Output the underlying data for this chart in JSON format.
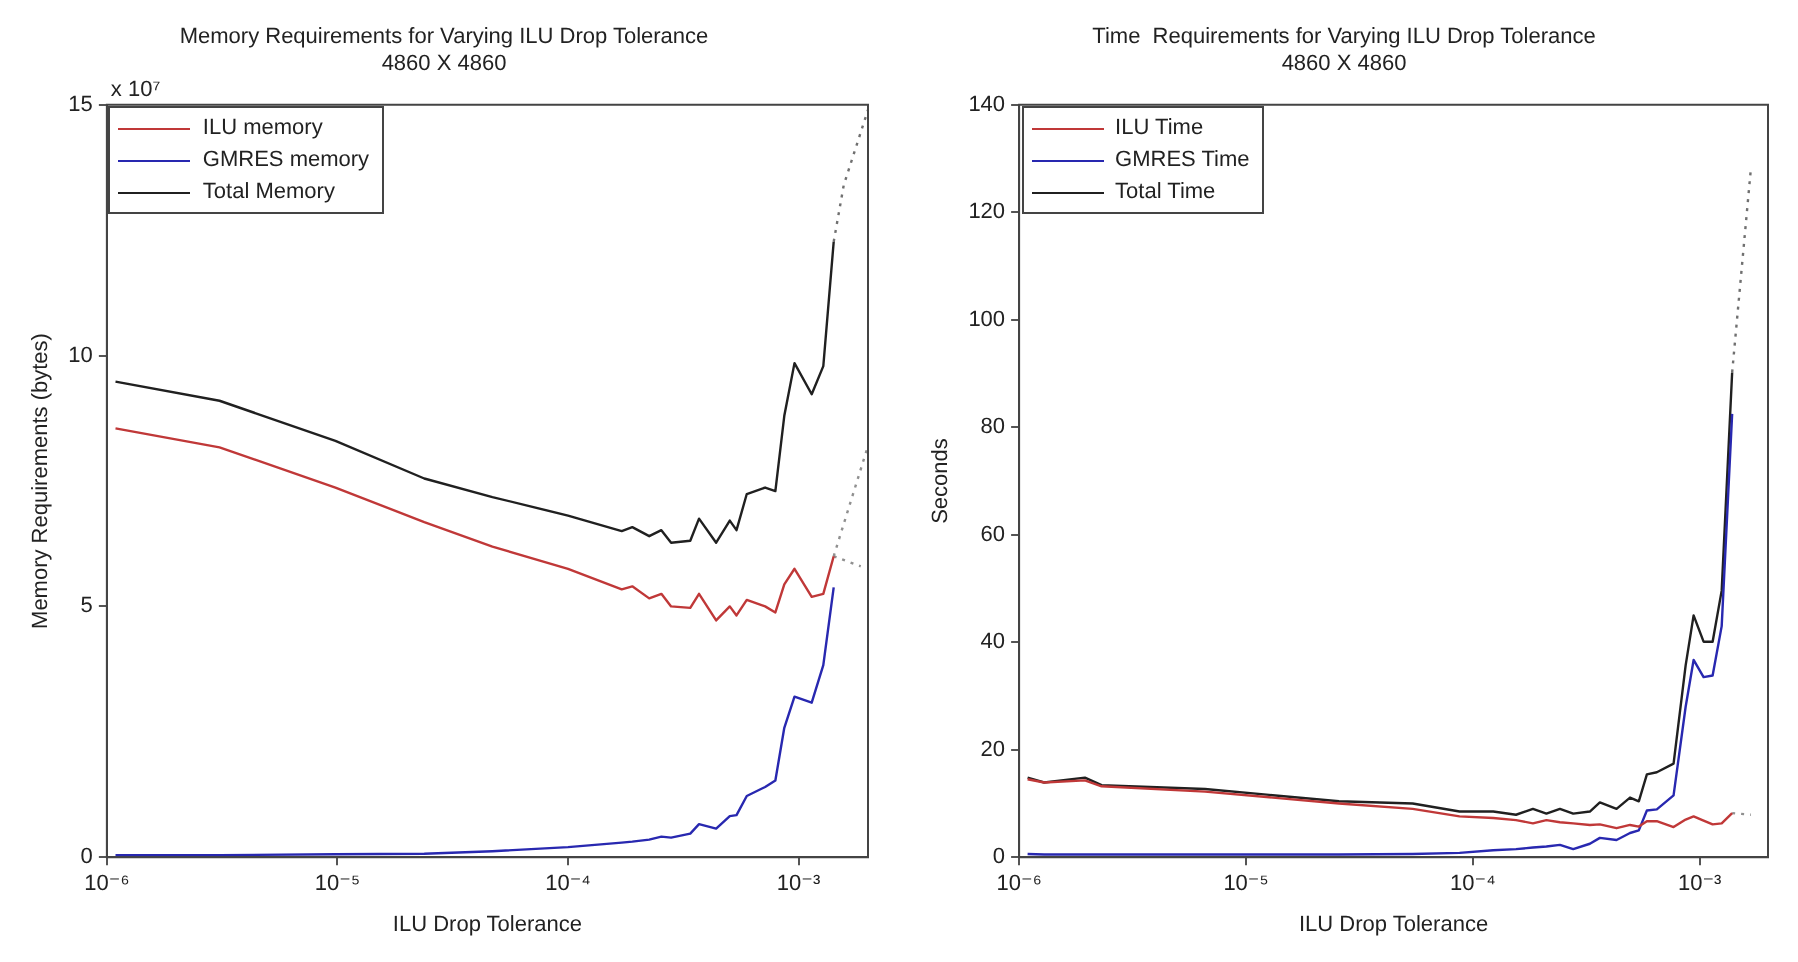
{
  "chart_data": [
    {
      "type": "line",
      "title": "Memory Requirements for Varying ILU Drop Tolerance",
      "subtitle": "4860 X 4860",
      "xlabel": "ILU Drop Tolerance",
      "ylabel": "Memory Requirements (bytes)",
      "annotations": [
        "x 10⁷"
      ],
      "x": [
        1.09e-06,
        3.08e-06,
        9.8e-06,
        2.38e-05,
        4.7e-05,
        0.0001,
        0.000171,
        0.00019,
        0.000225,
        0.000254,
        0.00028,
        0.000339,
        0.00037,
        0.000439,
        0.000503,
        0.000538,
        0.000596,
        0.000716,
        0.000793,
        0.000867,
        0.00096,
        0.00114,
        0.00128,
        0.00142
      ],
      "series": [
        {
          "name": "ILU memory",
          "color": "#c03838",
          "values": [
            8.55,
            8.17,
            7.37,
            6.68,
            6.19,
            5.75,
            5.34,
            5.4,
            5.16,
            5.25,
            5.0,
            4.97,
            5.25,
            4.72,
            5.0,
            4.82,
            5.13,
            5.0,
            4.88,
            5.44,
            5.75,
            5.19,
            5.25,
            6.0
          ]
        },
        {
          "name": "GMRES memory",
          "color": "#2828b0",
          "values": [
            0.04,
            0.04,
            0.06,
            0.07,
            0.12,
            0.2,
            0.29,
            0.31,
            0.35,
            0.41,
            0.39,
            0.47,
            0.66,
            0.57,
            0.82,
            0.84,
            1.22,
            1.4,
            1.53,
            2.58,
            3.2,
            3.08,
            3.83,
            5.38
          ]
        },
        {
          "name": "Total Memory",
          "color": "#202020",
          "values": [
            9.48,
            9.1,
            8.3,
            7.55,
            7.18,
            6.81,
            6.5,
            6.58,
            6.4,
            6.52,
            6.27,
            6.31,
            6.75,
            6.27,
            6.71,
            6.52,
            7.24,
            7.37,
            7.3,
            8.8,
            9.85,
            9.23,
            9.79,
            12.27
          ]
        },
        {
          "color": "#707070",
          "line_style": "dotted",
          "x": [
            0.00142,
            0.00157,
            0.002
          ],
          "values": [
            12.27,
            13.4,
            14.9
          ]
        },
        {
          "color": "#909090",
          "line_style": "dotted",
          "x": [
            0.00142,
            0.002
          ],
          "values": [
            6.0,
            8.2
          ]
        },
        {
          "color": "#909090",
          "line_style": "dotted",
          "x": [
            0.00142,
            0.00186
          ],
          "values": [
            6.0,
            5.8
          ]
        }
      ],
      "log": "x",
      "xlim": [
        1e-06,
        0.002
      ],
      "xticks": [
        {
          "value": 1e-06,
          "label": "10⁻⁶"
        },
        {
          "value": 1e-05,
          "label": "10⁻⁵"
        },
        {
          "value": 0.0001,
          "label": "10⁻⁴"
        },
        {
          "value": 0.001,
          "label": "10⁻³"
        }
      ],
      "ylim": [
        0,
        15
      ],
      "yticks": [
        0,
        5,
        10,
        15
      ],
      "grid": false,
      "legend": "top left"
    },
    {
      "type": "line",
      "title": "Time  Requirements for Varying ILU Drop Tolerance",
      "subtitle": "4860 X 4860",
      "xlabel": "ILU Drop Tolerance",
      "ylabel": "Seconds",
      "x": [
        1.09e-06,
        1.29e-06,
        1.95e-06,
        2.31e-06,
        6.6e-06,
        2.57e-05,
        5.43e-05,
        8.74e-05,
        0.000123,
        0.000155,
        0.000184,
        0.000211,
        0.000242,
        0.000277,
        0.000328,
        0.000363,
        0.00043,
        0.000493,
        0.000539,
        0.000585,
        0.000647,
        0.000767,
        0.000867,
        0.00094,
        0.00104,
        0.00114,
        0.00125,
        0.00139
      ],
      "series": [
        {
          "name": "ILU Time",
          "color": "#c03838",
          "values": [
            14.5,
            13.9,
            14.3,
            13.2,
            12.2,
            10.0,
            9.0,
            7.6,
            7.3,
            6.9,
            6.3,
            6.9,
            6.5,
            6.3,
            6.0,
            6.1,
            5.4,
            6.0,
            5.7,
            6.7,
            6.7,
            5.6,
            7.0,
            7.6,
            6.8,
            6.1,
            6.3,
            8.2
          ]
        },
        {
          "name": "GMRES Time",
          "color": "#2828b0",
          "values": [
            0.6,
            0.5,
            0.5,
            0.5,
            0.5,
            0.5,
            0.6,
            0.8,
            1.3,
            1.5,
            1.8,
            2.0,
            2.3,
            1.5,
            2.5,
            3.6,
            3.2,
            4.5,
            5.0,
            8.7,
            8.9,
            11.5,
            28.0,
            36.7,
            33.5,
            33.8,
            43.0,
            82.5
          ]
        },
        {
          "name": "Total Time",
          "color": "#202020",
          "values": [
            14.8,
            13.9,
            14.8,
            13.4,
            12.7,
            10.4,
            10.0,
            8.5,
            8.5,
            7.9,
            9.0,
            8.1,
            9.0,
            8.1,
            8.5,
            10.2,
            9.0,
            11.1,
            10.4,
            15.4,
            15.8,
            17.4,
            35.7,
            45.0,
            40.1,
            40.1,
            49.6,
            90.2
          ]
        },
        {
          "color": "#707070",
          "line_style": "dotted",
          "x": [
            0.00139,
            0.00168
          ],
          "values": [
            90.2,
            128
          ]
        },
        {
          "color": "#909090",
          "line_style": "dotted",
          "x": [
            0.00139,
            0.00168
          ],
          "values": [
            8.2,
            7.9
          ]
        }
      ],
      "log": "x",
      "xlim": [
        1e-06,
        0.002
      ],
      "xticks": [
        {
          "value": 1e-06,
          "label": "10⁻⁶"
        },
        {
          "value": 1e-05,
          "label": "10⁻⁵"
        },
        {
          "value": 0.0001,
          "label": "10⁻⁴"
        },
        {
          "value": 0.001,
          "label": "10⁻³"
        }
      ],
      "ylim": [
        0,
        140
      ],
      "yticks": [
        0,
        20,
        40,
        60,
        80,
        100,
        120,
        140
      ],
      "grid": false,
      "legend": "top left"
    }
  ]
}
